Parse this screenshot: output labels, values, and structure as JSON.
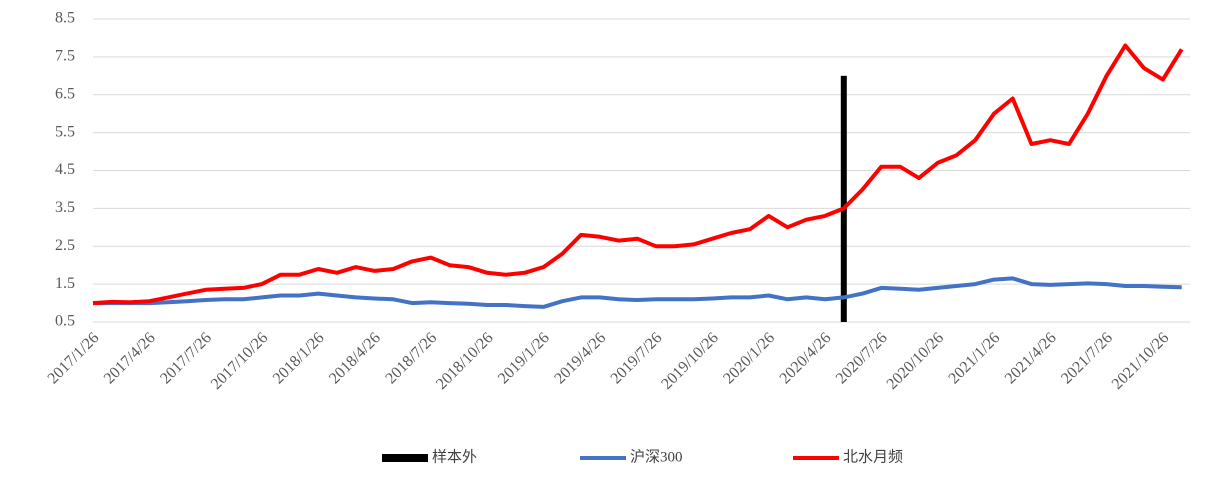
{
  "chart_data": {
    "type": "line",
    "categories": [
      "2017/1/26",
      null,
      null,
      "2017/4/26",
      null,
      null,
      "2017/7/26",
      null,
      null,
      "2017/10/26",
      null,
      null,
      "2018/1/26",
      null,
      null,
      "2018/4/26",
      null,
      null,
      "2018/7/26",
      null,
      null,
      "2018/10/26",
      null,
      null,
      "2019/1/26",
      null,
      null,
      "2019/4/26",
      null,
      null,
      "2019/7/26",
      null,
      null,
      "2019/10/26",
      null,
      null,
      "2020/1/26",
      null,
      null,
      "2020/4/26",
      null,
      null,
      "2020/7/26",
      null,
      null,
      "2020/10/26",
      null,
      null,
      "2021/1/26",
      null,
      null,
      "2021/4/26",
      null,
      null,
      "2021/7/26",
      null,
      null,
      "2021/10/26",
      null
    ],
    "series": [
      {
        "name": "样本外",
        "type": "bar",
        "color": "#000000",
        "values": [
          null,
          null,
          null,
          null,
          null,
          null,
          null,
          null,
          null,
          null,
          null,
          null,
          null,
          null,
          null,
          null,
          null,
          null,
          null,
          null,
          null,
          null,
          null,
          null,
          null,
          null,
          null,
          null,
          null,
          null,
          null,
          null,
          null,
          null,
          null,
          null,
          null,
          null,
          null,
          null,
          7.0,
          null,
          null,
          null,
          null,
          null,
          null,
          null,
          null,
          null,
          null,
          null,
          null,
          null,
          null,
          null,
          null,
          null,
          null
        ]
      },
      {
        "name": "沪深300",
        "type": "line",
        "color": "#4472c4",
        "values": [
          1.0,
          1.0,
          1.0,
          1.0,
          1.02,
          1.05,
          1.08,
          1.1,
          1.1,
          1.15,
          1.2,
          1.2,
          1.25,
          1.2,
          1.15,
          1.12,
          1.1,
          1.0,
          1.02,
          1.0,
          0.98,
          0.95,
          0.95,
          0.92,
          0.9,
          1.05,
          1.15,
          1.15,
          1.1,
          1.08,
          1.1,
          1.1,
          1.1,
          1.12,
          1.15,
          1.15,
          1.2,
          1.1,
          1.15,
          1.1,
          1.15,
          1.25,
          1.4,
          1.38,
          1.35,
          1.4,
          1.45,
          1.5,
          1.62,
          1.65,
          1.5,
          1.48,
          1.5,
          1.52,
          1.5,
          1.45,
          1.45,
          1.43,
          1.42
        ]
      },
      {
        "name": "北水月频",
        "type": "line",
        "color": "#ff0000",
        "values": [
          1.0,
          1.03,
          1.02,
          1.05,
          1.15,
          1.25,
          1.35,
          1.38,
          1.4,
          1.5,
          1.75,
          1.75,
          1.9,
          1.8,
          1.95,
          1.85,
          1.9,
          2.1,
          2.2,
          2.0,
          1.95,
          1.8,
          1.75,
          1.8,
          1.95,
          2.3,
          2.8,
          2.75,
          2.65,
          2.7,
          2.5,
          2.5,
          2.55,
          2.7,
          2.85,
          2.95,
          3.3,
          3.0,
          3.2,
          3.3,
          3.5,
          4.0,
          4.6,
          4.6,
          4.3,
          4.7,
          4.9,
          5.3,
          6.0,
          6.4,
          5.2,
          5.3,
          5.2,
          6.0,
          7.0,
          7.8,
          7.2,
          6.9,
          7.7
        ]
      }
    ],
    "ylim": [
      0.5,
      8.5
    ],
    "yticks": [
      0.5,
      1.5,
      2.5,
      3.5,
      4.5,
      5.5,
      6.5,
      7.5,
      8.5
    ],
    "grid": true,
    "legend": "bottom"
  }
}
